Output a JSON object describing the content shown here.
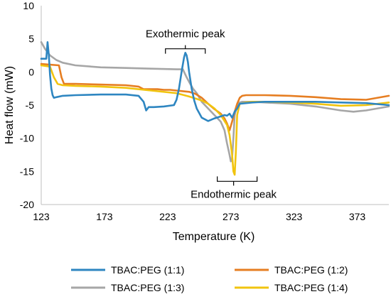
{
  "chart_data": {
    "type": "line",
    "xlabel": "Temperature (K)",
    "ylabel": "Heat flow (mW)",
    "xlim": [
      123,
      398
    ],
    "ylim": [
      -20,
      10
    ],
    "xticks": [
      123,
      173,
      223,
      273,
      323,
      373
    ],
    "yticks": [
      10,
      5,
      0,
      -5,
      -10,
      -15,
      -20
    ],
    "grid": false,
    "legend_position": "bottom",
    "annotations": [
      {
        "text": "Exothermic peak",
        "x": 237,
        "y": 5.0
      },
      {
        "text": "Endothermic peak",
        "x": 278,
        "y": -16.5
      }
    ],
    "series": [
      {
        "name": "TBAC:PEG (1:1)",
        "color": "#2e86c1",
        "x": [
          123,
          124,
          127,
          128,
          129,
          130,
          131,
          132,
          133,
          135,
          140,
          150,
          170,
          190,
          200,
          204,
          206,
          208,
          212,
          220,
          228,
          230,
          232,
          234,
          236,
          237,
          238,
          239,
          240,
          242,
          244,
          246,
          250,
          255,
          260,
          265,
          268,
          270,
          272,
          274,
          276,
          278,
          280,
          290,
          300,
          320,
          340,
          360,
          380,
          398
        ],
        "y": [
          2.0,
          2.0,
          2.0,
          4.5,
          2.5,
          -0.5,
          -2.5,
          -3.5,
          -3.9,
          -3.8,
          -3.6,
          -3.5,
          -3.4,
          -3.4,
          -3.6,
          -4.5,
          -5.8,
          -5.3,
          -5.3,
          -5.2,
          -5.0,
          -4.2,
          -2.5,
          0.0,
          2.2,
          2.9,
          2.5,
          1.5,
          0.0,
          -2.5,
          -4.3,
          -5.5,
          -6.9,
          -7.4,
          -7.0,
          -6.7,
          -6.5,
          -6.6,
          -6.3,
          -6.9,
          -6.0,
          -5.5,
          -4.8,
          -4.6,
          -4.5,
          -4.5,
          -4.5,
          -4.6,
          -4.7,
          -5.0
        ]
      },
      {
        "name": "TBAC:PEG (1:2)",
        "color": "#e67e22",
        "x": [
          123,
          130,
          137,
          139,
          141,
          143,
          150,
          170,
          190,
          200,
          204,
          210,
          215,
          220,
          225,
          230,
          235,
          240,
          245,
          250,
          255,
          260,
          265,
          268,
          270,
          272,
          274,
          276,
          278,
          280,
          282,
          285,
          290,
          300,
          320,
          340,
          360,
          380,
          398
        ],
        "y": [
          1.2,
          1.1,
          1.0,
          -0.8,
          -1.8,
          -1.8,
          -1.8,
          -1.9,
          -2.0,
          -2.2,
          -2.6,
          -2.6,
          -2.6,
          -2.7,
          -2.7,
          -2.8,
          -2.9,
          -3.0,
          -3.3,
          -3.9,
          -4.8,
          -5.6,
          -6.3,
          -7.0,
          -7.8,
          -8.8,
          -7.5,
          -6.0,
          -4.8,
          -3.9,
          -3.6,
          -3.5,
          -3.5,
          -3.5,
          -3.6,
          -3.8,
          -4.1,
          -4.2,
          -3.6
        ]
      },
      {
        "name": "TBAC:PEG (1:3)",
        "color": "#a6a6a6",
        "x": [
          123,
          126,
          130,
          135,
          140,
          150,
          170,
          190,
          210,
          230,
          235,
          238,
          240,
          243,
          246,
          250,
          255,
          260,
          265,
          268,
          270,
          272,
          273,
          274,
          275,
          276,
          278,
          280,
          282,
          285,
          290,
          300,
          320,
          340,
          360,
          370,
          380,
          398
        ],
        "y": [
          4.5,
          3.5,
          2.5,
          1.8,
          1.4,
          1.0,
          0.7,
          0.6,
          0.5,
          0.4,
          0.4,
          -0.8,
          -1.5,
          -2.5,
          -3.2,
          -4.5,
          -5.5,
          -6.5,
          -7.5,
          -8.8,
          -10.8,
          -12.5,
          -13.5,
          -13.0,
          -10.0,
          -6.5,
          -5.0,
          -4.6,
          -4.5,
          -4.5,
          -4.5,
          -4.6,
          -4.8,
          -5.2,
          -5.8,
          -6.0,
          -5.8,
          -5.2
        ]
      },
      {
        "name": "TBAC:PEG (1:4)",
        "color": "#f1c40f",
        "x": [
          123,
          130,
          133,
          136,
          140,
          150,
          170,
          190,
          210,
          230,
          240,
          250,
          255,
          260,
          265,
          270,
          272,
          274,
          275,
          276,
          277,
          278,
          280,
          285,
          290,
          300,
          320,
          340,
          360,
          380,
          398
        ],
        "y": [
          1.0,
          0.8,
          -0.8,
          -1.8,
          -2.0,
          -2.1,
          -2.2,
          -2.4,
          -2.8,
          -3.2,
          -3.7,
          -4.3,
          -4.8,
          -5.5,
          -6.5,
          -8.0,
          -9.5,
          -12.5,
          -15.0,
          -15.5,
          -12.0,
          -6.5,
          -4.8,
          -4.6,
          -4.5,
          -4.5,
          -4.6,
          -4.8,
          -5.1,
          -5.0,
          -4.6
        ]
      }
    ]
  }
}
